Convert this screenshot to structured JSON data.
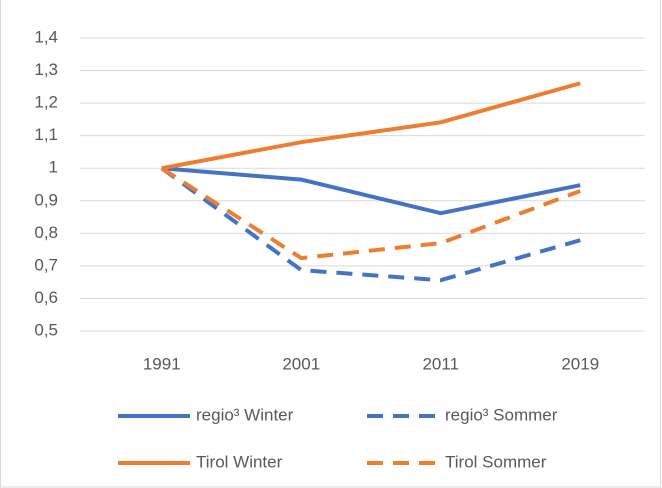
{
  "chart_data": {
    "type": "line",
    "categories": [
      "1991",
      "2001",
      "2011",
      "2019"
    ],
    "series": [
      {
        "name": "regio³ Winter",
        "color": "#4472c4",
        "dashed": false,
        "values": [
          1.0,
          0.965,
          0.862,
          0.948
        ]
      },
      {
        "name": "regio³ Sommer",
        "color": "#4472c4",
        "dashed": true,
        "values": [
          1.0,
          0.687,
          0.656,
          0.779
        ]
      },
      {
        "name": "Tirol Winter",
        "color": "#ed7d31",
        "dashed": false,
        "values": [
          1.0,
          1.08,
          1.141,
          1.261
        ]
      },
      {
        "name": "Tirol Sommer",
        "color": "#ed7d31",
        "dashed": true,
        "values": [
          1.0,
          0.724,
          0.77,
          0.93
        ]
      }
    ],
    "ylim": [
      0.5,
      1.4
    ],
    "yticks": [
      {
        "value": 0.5,
        "label": "0,5"
      },
      {
        "value": 0.6,
        "label": "0,6"
      },
      {
        "value": 0.7,
        "label": "0,7"
      },
      {
        "value": 0.8,
        "label": "0,8"
      },
      {
        "value": 0.9,
        "label": "0,9"
      },
      1,
      {
        "value": 1.1,
        "label": "1,1"
      },
      {
        "value": 1.2,
        "label": "1,2"
      },
      {
        "value": 1.3,
        "label": "1,3"
      },
      {
        "value": 1.4,
        "label": "1,4"
      }
    ],
    "grid": true
  }
}
